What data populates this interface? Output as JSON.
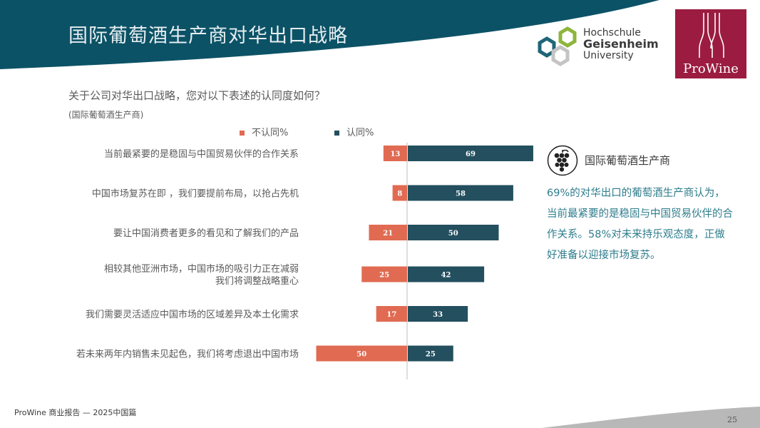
{
  "page": {
    "title": "国际葡萄酒生产商对华出口战略",
    "question": "关于公司对华出口战略，您对以下表述的认同度如何？",
    "subgroup": "(国际葡萄酒生产商)",
    "footer": "ProWine 商业报告 — 2025中国篇",
    "page_number": "25"
  },
  "logos": {
    "geisenheim": {
      "line1": "Hochschule",
      "line2": "Geisenheim",
      "line3": "University"
    },
    "prowine": {
      "text": "ProWine"
    }
  },
  "side_panel": {
    "icon": "grape-icon",
    "title": "国际葡萄酒生产商",
    "text": "69%的对华出口的葡萄酒生产商认为，当前最紧要的是稳固与中国贸易伙伴的合作关系。58%对未来持乐观态度，正做好准备以迎接市场复苏。"
  },
  "colors": {
    "disagree": "#e06b52",
    "agree": "#234f5f",
    "header": "#0c5266",
    "side_text": "#2e7d8c",
    "prowine": "#9b1c40"
  },
  "chart_data": {
    "type": "bar",
    "orientation": "horizontal-diverging",
    "categories": [
      "当前最紧要的是稳固与中国贸易伙伴的合作关系",
      "中国市场复苏在即 ，我们要提前布局，以抢占先机",
      "要让中国消费者更多的看见和了解我们的产品",
      "相较其他亚洲市场，中国市场的吸引力正在减弱\n我们将调整战略重心",
      "我们需要灵活适应中国市场的区域差异及本土化需求",
      "若未来两年内销售未见起色，我们将考虑退出中国市场"
    ],
    "series": [
      {
        "name": "不认同%",
        "values": [
          13,
          8,
          21,
          25,
          17,
          50
        ]
      },
      {
        "name": "认同%",
        "values": [
          69,
          58,
          50,
          42,
          33,
          25
        ]
      }
    ],
    "legend_position": "top"
  }
}
